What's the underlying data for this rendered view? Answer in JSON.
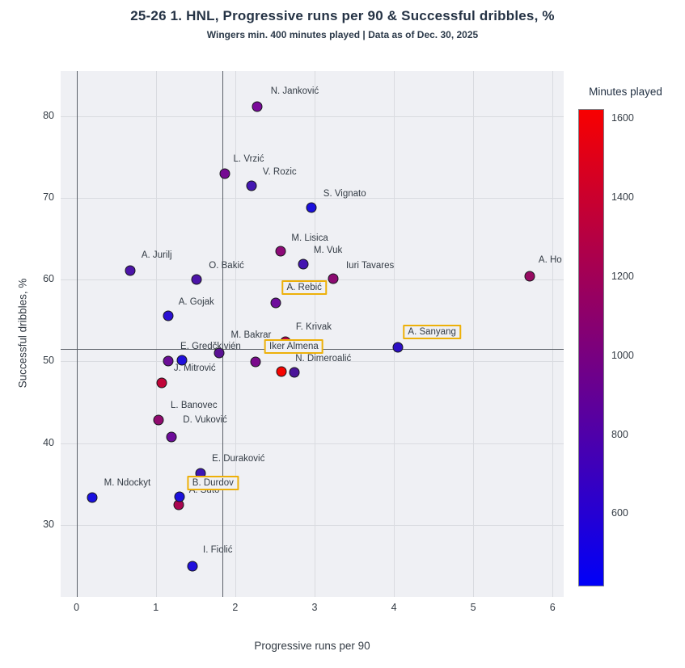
{
  "chart_data": {
    "type": "scatter",
    "title": "25-26 1. HNL, Progressive runs per 90 & Successful dribbles, %",
    "subtitle": "Wingers min. 400 minutes played | Data as of Dec. 30, 2025",
    "xlabel": "Progressive runs per 90",
    "ylabel": "Successful dribbles, %",
    "xlim": [
      -0.2,
      6.14
    ],
    "ylim": [
      21.2,
      85.5
    ],
    "xticks": [
      0,
      1,
      2,
      3,
      4,
      5,
      6
    ],
    "yticks": [
      30,
      40,
      50,
      60,
      70,
      80
    ],
    "grid": true,
    "zero_line_x": 0,
    "mean_line_x": 1.84,
    "mean_line_y": 51.5,
    "highlight_box_color": "#edb009",
    "points": [
      {
        "label": "N. Janković",
        "x": 2.28,
        "y": 81.2,
        "color": "#7a0a9a",
        "label_x": 2.75,
        "label_y": 83.0,
        "boxed": false
      },
      {
        "label": "L. Vrzić",
        "x": 1.87,
        "y": 73.0,
        "color": "#750b92",
        "label_x": 2.17,
        "label_y": 74.7,
        "boxed": false
      },
      {
        "label": "V. Rozic",
        "x": 2.21,
        "y": 71.5,
        "color": "#4417b2",
        "label_x": 2.56,
        "label_y": 73.2,
        "boxed": false
      },
      {
        "label": "S. Vignato",
        "x": 2.96,
        "y": 68.8,
        "color": "#1b10dd",
        "label_x": 3.38,
        "label_y": 70.5,
        "boxed": false
      },
      {
        "label": "M. Lisica",
        "x": 2.57,
        "y": 63.5,
        "color": "#8d0a77",
        "label_x": 2.94,
        "label_y": 65.1,
        "boxed": false
      },
      {
        "label": "M. Vuk",
        "x": 2.86,
        "y": 61.9,
        "color": "#4414b0",
        "label_x": 3.17,
        "label_y": 63.6,
        "boxed": false
      },
      {
        "label": "Iuri Tavares",
        "x": 3.23,
        "y": 60.1,
        "color": "#8c0b72",
        "label_x": 3.7,
        "label_y": 61.7,
        "boxed": false
      },
      {
        "label": "A. Ho",
        "x": 5.71,
        "y": 60.4,
        "color": "#970b62",
        "label_x": 5.97,
        "label_y": 62.4,
        "boxed": false
      },
      {
        "label": "A. Jurilj",
        "x": 0.68,
        "y": 61.1,
        "color": "#4c14a8",
        "label_x": 1.01,
        "label_y": 63.0,
        "boxed": false
      },
      {
        "label": "O. Bakić",
        "x": 1.51,
        "y": 60.0,
        "color": "#4c14a8",
        "label_x": 1.89,
        "label_y": 61.7,
        "boxed": false
      },
      {
        "label": "A. Rebić",
        "x": 2.51,
        "y": 57.2,
        "color": "#6e0c9c",
        "label_x": 2.87,
        "label_y": 59.0,
        "boxed": true
      },
      {
        "label": "A. Gojak",
        "x": 1.16,
        "y": 55.6,
        "color": "#2a10d2",
        "label_x": 1.51,
        "label_y": 57.3,
        "boxed": false
      },
      {
        "label": "F. Krivak",
        "x": 2.63,
        "y": 52.4,
        "color": "#b80640",
        "label_x": 2.99,
        "label_y": 54.2,
        "boxed": false
      },
      {
        "label": "A. Sanyang",
        "x": 4.05,
        "y": 51.7,
        "color": "#2c0fc4",
        "label_x": 4.48,
        "label_y": 53.6,
        "boxed": true
      },
      {
        "label": "M. Bakrar",
        "x": 1.8,
        "y": 51.0,
        "color": "#5a1193",
        "label_x": 2.2,
        "label_y": 53.2,
        "boxed": false
      },
      {
        "label": "E. Gredčkivién",
        "x": 1.16,
        "y": 50.0,
        "color": "#6a0d96",
        "label_x": 1.69,
        "label_y": 51.8,
        "boxed": false
      },
      {
        "label": "",
        "x": 1.33,
        "y": 50.1,
        "color": "#2010dc",
        "label_x": null,
        "label_y": null,
        "boxed": false
      },
      {
        "label": "",
        "x": 2.26,
        "y": 49.9,
        "color": "#7a0a8c",
        "label_x": null,
        "label_y": null,
        "boxed": false
      },
      {
        "label": "N. Dimeroalić",
        "x": 2.58,
        "y": 48.8,
        "color": "#f60400",
        "label_x": 3.11,
        "label_y": 50.3,
        "boxed": false
      },
      {
        "label": "Iker Almena",
        "x": 2.75,
        "y": 48.7,
        "color": "#4a1499",
        "label_x": 2.74,
        "label_y": 51.8,
        "boxed": true
      },
      {
        "label": "J. Mitrović",
        "x": 1.07,
        "y": 47.4,
        "color": "#c00438",
        "label_x": 1.49,
        "label_y": 49.2,
        "boxed": false
      },
      {
        "label": "L. Banovec",
        "x": 1.03,
        "y": 42.8,
        "color": "#900a6e",
        "label_x": 1.48,
        "label_y": 44.6,
        "boxed": false
      },
      {
        "label": "D. Vuković",
        "x": 1.2,
        "y": 40.8,
        "color": "#6e0c9a",
        "label_x": 1.62,
        "label_y": 42.8,
        "boxed": false
      },
      {
        "label": "E. Duraković",
        "x": 1.56,
        "y": 36.3,
        "color": "#3c14b4",
        "label_x": 2.04,
        "label_y": 38.1,
        "boxed": false
      },
      {
        "label": "A. Šuto",
        "x": 1.29,
        "y": 32.5,
        "color": "#aa0650",
        "label_x": 1.61,
        "label_y": 34.2,
        "boxed": false
      },
      {
        "label": "B. Durdov",
        "x": 1.3,
        "y": 33.4,
        "color": "#1c10dc",
        "label_x": 1.72,
        "label_y": 35.1,
        "boxed": true
      },
      {
        "label": "M. Ndockyt",
        "x": 0.2,
        "y": 33.3,
        "color": "#1a10e0",
        "label_x": 0.64,
        "label_y": 35.1,
        "boxed": false
      },
      {
        "label": "I. Fiolić",
        "x": 1.46,
        "y": 25.0,
        "color": "#2010dc",
        "label_x": 1.78,
        "label_y": 26.9,
        "boxed": false
      }
    ],
    "colorbar": {
      "title": "Minutes played",
      "ticks": [
        1600,
        1400,
        1200,
        1000,
        800,
        600
      ],
      "vmax": 1625,
      "vmin": 417,
      "top_color": "#f80000",
      "mid_color": "#7c007c",
      "bottom_color": "#0000f8"
    }
  }
}
